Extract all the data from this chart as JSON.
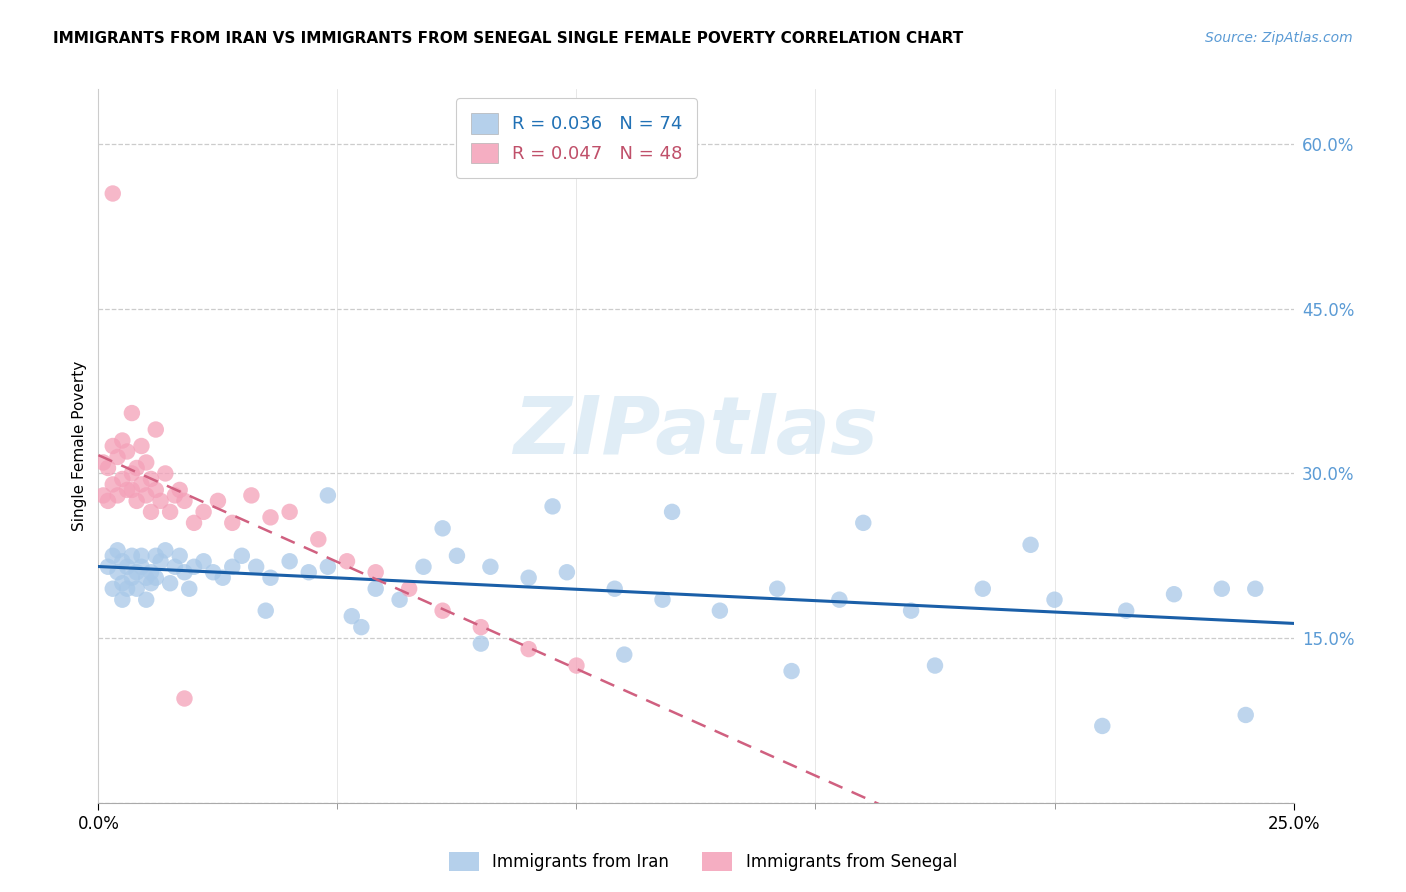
{
  "title": "IMMIGRANTS FROM IRAN VS IMMIGRANTS FROM SENEGAL SINGLE FEMALE POVERTY CORRELATION CHART",
  "source": "Source: ZipAtlas.com",
  "ylabel": "Single Female Poverty",
  "legend_label_iran": "Immigrants from Iran",
  "legend_label_senegal": "Immigrants from Senegal",
  "iran_color": "#a8c8e8",
  "senegal_color": "#f4a0b8",
  "iran_line_color": "#1a5fa8",
  "senegal_line_color": "#d06080",
  "watermark": "ZIPatlas",
  "xlim": [
    0.0,
    0.25
  ],
  "ylim": [
    0.0,
    0.65
  ],
  "ytick_positions": [
    0.0,
    0.15,
    0.3,
    0.45,
    0.6
  ],
  "ytick_labels": [
    "",
    "15.0%",
    "30.0%",
    "45.0%",
    "60.0%"
  ],
  "iran_x": [
    0.002,
    0.003,
    0.003,
    0.004,
    0.004,
    0.005,
    0.005,
    0.005,
    0.006,
    0.006,
    0.007,
    0.007,
    0.008,
    0.008,
    0.009,
    0.009,
    0.01,
    0.01,
    0.011,
    0.011,
    0.012,
    0.012,
    0.013,
    0.014,
    0.015,
    0.016,
    0.017,
    0.018,
    0.019,
    0.02,
    0.022,
    0.024,
    0.026,
    0.028,
    0.03,
    0.033,
    0.036,
    0.04,
    0.044,
    0.048,
    0.053,
    0.058,
    0.063,
    0.068,
    0.075,
    0.082,
    0.09,
    0.098,
    0.108,
    0.118,
    0.13,
    0.142,
    0.155,
    0.17,
    0.185,
    0.2,
    0.215,
    0.225,
    0.235,
    0.242,
    0.048,
    0.072,
    0.095,
    0.12,
    0.16,
    0.195,
    0.035,
    0.055,
    0.08,
    0.11,
    0.145,
    0.175,
    0.21,
    0.24
  ],
  "iran_y": [
    0.215,
    0.225,
    0.195,
    0.21,
    0.23,
    0.2,
    0.185,
    0.22,
    0.195,
    0.215,
    0.205,
    0.225,
    0.195,
    0.21,
    0.215,
    0.225,
    0.205,
    0.185,
    0.2,
    0.21,
    0.205,
    0.225,
    0.22,
    0.23,
    0.2,
    0.215,
    0.225,
    0.21,
    0.195,
    0.215,
    0.22,
    0.21,
    0.205,
    0.215,
    0.225,
    0.215,
    0.205,
    0.22,
    0.21,
    0.215,
    0.17,
    0.195,
    0.185,
    0.215,
    0.225,
    0.215,
    0.205,
    0.21,
    0.195,
    0.185,
    0.175,
    0.195,
    0.185,
    0.175,
    0.195,
    0.185,
    0.175,
    0.19,
    0.195,
    0.195,
    0.28,
    0.25,
    0.27,
    0.265,
    0.255,
    0.235,
    0.175,
    0.16,
    0.145,
    0.135,
    0.12,
    0.125,
    0.07,
    0.08
  ],
  "senegal_x": [
    0.001,
    0.001,
    0.002,
    0.002,
    0.003,
    0.003,
    0.004,
    0.004,
    0.005,
    0.005,
    0.006,
    0.006,
    0.007,
    0.007,
    0.008,
    0.008,
    0.009,
    0.009,
    0.01,
    0.01,
    0.011,
    0.011,
    0.012,
    0.013,
    0.014,
    0.015,
    0.016,
    0.017,
    0.018,
    0.02,
    0.022,
    0.025,
    0.028,
    0.032,
    0.036,
    0.04,
    0.046,
    0.052,
    0.058,
    0.065,
    0.072,
    0.08,
    0.09,
    0.1,
    0.003,
    0.007,
    0.012,
    0.018
  ],
  "senegal_y": [
    0.28,
    0.31,
    0.275,
    0.305,
    0.29,
    0.325,
    0.28,
    0.315,
    0.295,
    0.33,
    0.285,
    0.32,
    0.3,
    0.285,
    0.275,
    0.305,
    0.29,
    0.325,
    0.31,
    0.28,
    0.295,
    0.265,
    0.285,
    0.275,
    0.3,
    0.265,
    0.28,
    0.285,
    0.275,
    0.255,
    0.265,
    0.275,
    0.255,
    0.28,
    0.26,
    0.265,
    0.24,
    0.22,
    0.21,
    0.195,
    0.175,
    0.16,
    0.14,
    0.125,
    0.555,
    0.355,
    0.34,
    0.095
  ]
}
